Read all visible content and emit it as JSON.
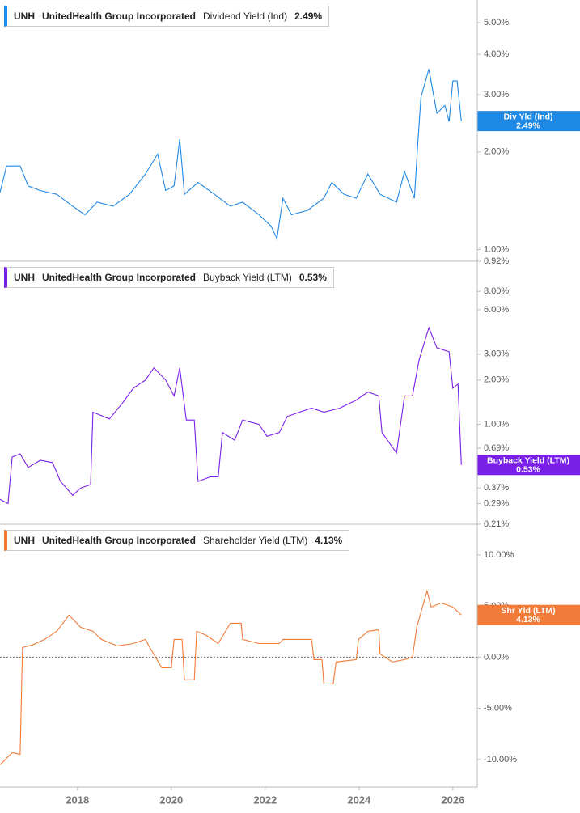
{
  "chart_data": [
    {
      "type": "line",
      "ticker": "UNH",
      "company": "UnitedHealth Group Incorporated",
      "title": "Dividend Yield (Ind)",
      "last_value": 2.49,
      "last_value_label": "2.49%",
      "tag_label": "Div Yld (Ind)",
      "log": true,
      "color": "#1e88e5",
      "xlim": [
        2016.35,
        2026.52
      ],
      "ylim": [
        0.92,
        5.88
      ],
      "yticks": [
        {
          "value": 5,
          "label": "5.00%"
        },
        {
          "value": 4,
          "label": "4.00%"
        },
        {
          "value": 3,
          "label": "3.00%"
        },
        {
          "value": 2,
          "label": "2.00%"
        },
        {
          "value": 1,
          "label": "1.00%"
        },
        {
          "value": 0.92,
          "label": "0.92%"
        }
      ],
      "x": [
        2016.35,
        2016.49,
        2016.78,
        2016.95,
        2017.21,
        2017.56,
        2017.9,
        2018.16,
        2018.42,
        2018.76,
        2019.11,
        2019.45,
        2019.71,
        2019.88,
        2020.06,
        2020.18,
        2020.28,
        2020.57,
        2020.92,
        2021.26,
        2021.52,
        2021.87,
        2022.13,
        2022.25,
        2022.38,
        2022.56,
        2022.9,
        2023.25,
        2023.42,
        2023.68,
        2023.94,
        2024.19,
        2024.45,
        2024.8,
        2024.97,
        2025.18,
        2025.25,
        2025.32,
        2025.49,
        2025.66,
        2025.83,
        2025.92,
        2026.0,
        2026.09,
        2026.18
      ],
      "values": [
        1.5,
        1.81,
        1.81,
        1.57,
        1.52,
        1.48,
        1.36,
        1.28,
        1.4,
        1.36,
        1.48,
        1.71,
        1.97,
        1.52,
        1.57,
        2.19,
        1.48,
        1.61,
        1.48,
        1.36,
        1.4,
        1.28,
        1.18,
        1.08,
        1.44,
        1.28,
        1.32,
        1.44,
        1.61,
        1.48,
        1.44,
        1.71,
        1.48,
        1.4,
        1.74,
        1.44,
        2.09,
        2.95,
        3.6,
        2.63,
        2.78,
        2.48,
        3.31,
        3.31,
        2.49
      ]
    },
    {
      "type": "line",
      "ticker": "UNH",
      "company": "UnitedHealth Group Incorporated",
      "title": "Buyback Yield (LTM)",
      "last_value": 0.53,
      "last_value_label": "0.53%",
      "tag_label": "Buyback Yield (LTM)",
      "log": true,
      "color": "#7a1fe8",
      "xlim": [
        2016.35,
        2026.52
      ],
      "ylim": [
        0.21,
        12.8
      ],
      "yticks": [
        {
          "value": 8,
          "label": "8.00%"
        },
        {
          "value": 6,
          "label": "6.00%"
        },
        {
          "value": 3,
          "label": "3.00%"
        },
        {
          "value": 2,
          "label": "2.00%"
        },
        {
          "value": 1,
          "label": "1.00%"
        },
        {
          "value": 0.69,
          "label": "0.69%"
        },
        {
          "value": 0.37,
          "label": "0.37%"
        },
        {
          "value": 0.29,
          "label": "0.29%"
        },
        {
          "value": 0.21,
          "label": "0.21%"
        }
      ],
      "x": [
        2016.35,
        2016.52,
        2016.61,
        2016.78,
        2016.95,
        2017.21,
        2017.47,
        2017.64,
        2017.9,
        2018.07,
        2018.28,
        2018.33,
        2018.68,
        2018.94,
        2019.19,
        2019.45,
        2019.63,
        2019.88,
        2020.06,
        2020.18,
        2020.32,
        2020.49,
        2020.57,
        2020.83,
        2021.0,
        2021.09,
        2021.35,
        2021.52,
        2021.87,
        2022.04,
        2022.3,
        2022.47,
        2022.73,
        2022.99,
        2023.25,
        2023.59,
        2023.94,
        2024.19,
        2024.42,
        2024.49,
        2024.8,
        2024.97,
        2025.14,
        2025.28,
        2025.49,
        2025.66,
        2025.92,
        2026.0,
        2026.11,
        2026.18
      ],
      "values": [
        0.31,
        0.29,
        0.6,
        0.63,
        0.51,
        0.57,
        0.55,
        0.41,
        0.33,
        0.37,
        0.39,
        1.21,
        1.09,
        1.37,
        1.76,
        2.0,
        2.42,
        2.0,
        1.56,
        2.42,
        1.07,
        1.07,
        0.41,
        0.44,
        0.44,
        0.88,
        0.78,
        1.07,
        1.0,
        0.83,
        0.88,
        1.13,
        1.21,
        1.29,
        1.21,
        1.29,
        1.46,
        1.66,
        1.56,
        0.88,
        0.64,
        1.56,
        1.56,
        2.74,
        4.54,
        3.31,
        3.11,
        1.76,
        1.88,
        0.53
      ]
    },
    {
      "type": "line",
      "ticker": "UNH",
      "company": "UnitedHealth Group Incorporated",
      "title": "Shareholder Yield (LTM)",
      "last_value": 4.13,
      "last_value_label": "4.13%",
      "tag_label": "Shr Yld (LTM)",
      "log": false,
      "color": "#f07c3a",
      "zero_line": true,
      "xlim": [
        2016.35,
        2026.52
      ],
      "ylim": [
        -12.7,
        13
      ],
      "yticks": [
        {
          "value": 10,
          "label": "10.00%"
        },
        {
          "value": 5,
          "label": "5.00%"
        },
        {
          "value": 0,
          "label": "0.00%"
        },
        {
          "value": -5,
          "label": "-5.00%"
        },
        {
          "value": -10,
          "label": "-10.00%"
        }
      ],
      "xticks": [
        2018,
        2020,
        2022,
        2024,
        2026
      ],
      "x": [
        2016.35,
        2016.61,
        2016.78,
        2016.83,
        2017.04,
        2017.3,
        2017.56,
        2017.82,
        2018.07,
        2018.33,
        2018.51,
        2018.85,
        2019.19,
        2019.45,
        2019.54,
        2019.8,
        2020.0,
        2020.06,
        2020.23,
        2020.28,
        2020.49,
        2020.54,
        2020.75,
        2021.0,
        2021.26,
        2021.49,
        2021.52,
        2021.87,
        2022.3,
        2022.38,
        2022.73,
        2022.99,
        2023.04,
        2023.21,
        2023.25,
        2023.45,
        2023.51,
        2023.94,
        2023.99,
        2024.19,
        2024.42,
        2024.45,
        2024.71,
        2024.97,
        2025.14,
        2025.23,
        2025.45,
        2025.54,
        2025.75,
        2026.0,
        2026.18
      ],
      "values": [
        -10.51,
        -9.33,
        -9.49,
        0.95,
        1.19,
        1.74,
        2.53,
        4.11,
        2.92,
        2.53,
        1.74,
        1.11,
        1.34,
        1.74,
        0.95,
        -1.03,
        -1.03,
        1.74,
        1.74,
        -2.21,
        -2.21,
        2.53,
        2.13,
        1.34,
        3.32,
        3.32,
        1.74,
        1.34,
        1.34,
        1.74,
        1.74,
        1.74,
        -0.24,
        -0.24,
        -2.61,
        -2.61,
        -0.47,
        -0.24,
        1.74,
        2.53,
        2.69,
        0.32,
        -0.47,
        -0.24,
        0,
        2.92,
        6.48,
        4.9,
        5.3,
        4.9,
        4.13
      ]
    }
  ]
}
